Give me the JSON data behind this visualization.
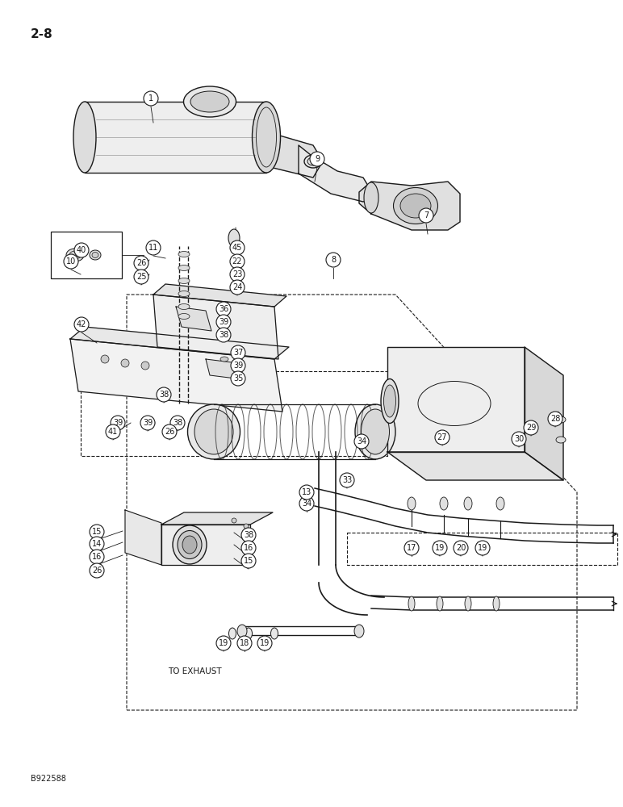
{
  "page_label": "2-8",
  "bottom_label": "B922588",
  "exhaust_label": "TO EXHAUST",
  "bg_color": "#ffffff",
  "line_color": "#1a1a1a",
  "labels": [
    [
      "1",
      187,
      878
    ],
    [
      "9",
      393,
      803
    ],
    [
      "7",
      528,
      733
    ],
    [
      "8",
      413,
      678
    ],
    [
      "45",
      294,
      693
    ],
    [
      "22",
      294,
      676
    ],
    [
      "23",
      294,
      660
    ],
    [
      "24",
      294,
      644
    ],
    [
      "40",
      101,
      690
    ],
    [
      "10",
      88,
      676
    ],
    [
      "11",
      190,
      693
    ],
    [
      "26",
      175,
      674
    ],
    [
      "25",
      175,
      657
    ],
    [
      "36",
      277,
      617
    ],
    [
      "39",
      277,
      601
    ],
    [
      "38",
      277,
      585
    ],
    [
      "37",
      295,
      563
    ],
    [
      "39",
      295,
      547
    ],
    [
      "35",
      295,
      531
    ],
    [
      "42",
      101,
      598
    ],
    [
      "38",
      203,
      511
    ],
    [
      "39",
      146,
      476
    ],
    [
      "39",
      183,
      476
    ],
    [
      "38",
      220,
      476
    ],
    [
      "26",
      210,
      465
    ],
    [
      "41",
      140,
      465
    ],
    [
      "27",
      548,
      458
    ],
    [
      "34",
      448,
      453
    ],
    [
      "33",
      430,
      405
    ],
    [
      "34",
      380,
      376
    ],
    [
      "13",
      380,
      390
    ],
    [
      "28",
      688,
      481
    ],
    [
      "29",
      658,
      470
    ],
    [
      "30",
      643,
      456
    ],
    [
      "15",
      120,
      341
    ],
    [
      "14",
      120,
      326
    ],
    [
      "16",
      120,
      310
    ],
    [
      "26",
      120,
      293
    ],
    [
      "38",
      308,
      337
    ],
    [
      "16",
      308,
      321
    ],
    [
      "15",
      308,
      305
    ],
    [
      "17",
      510,
      321
    ],
    [
      "19",
      545,
      321
    ],
    [
      "20",
      571,
      321
    ],
    [
      "19",
      598,
      321
    ],
    [
      "19",
      277,
      203
    ],
    [
      "18",
      303,
      203
    ],
    [
      "19",
      328,
      203
    ]
  ]
}
